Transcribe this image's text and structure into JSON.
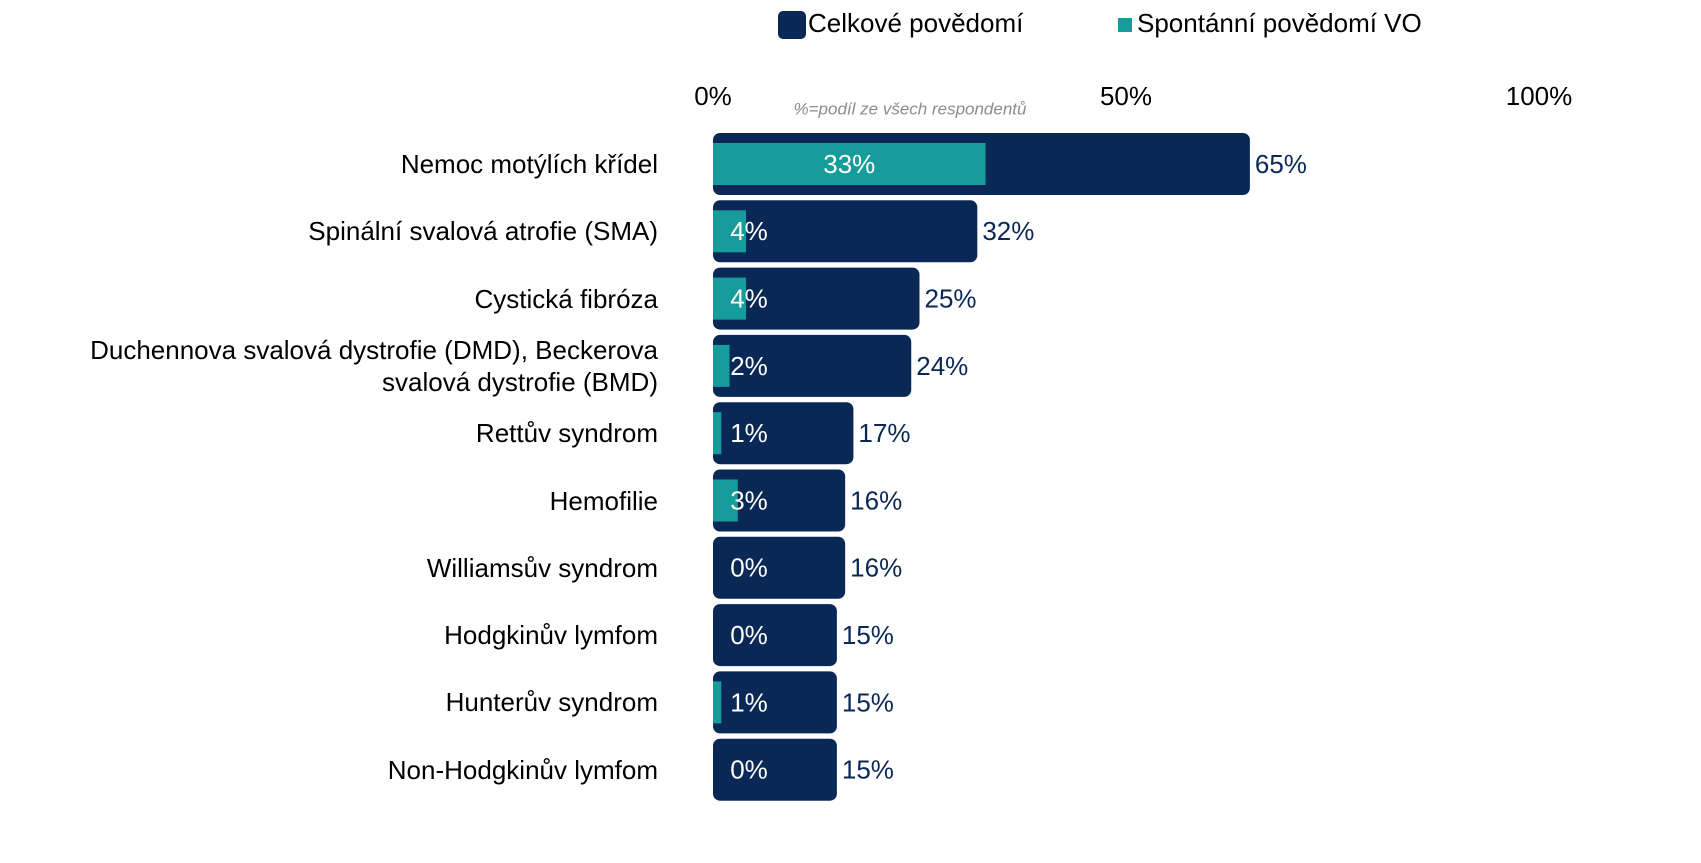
{
  "chart_data": {
    "type": "bar",
    "orientation": "horizontal",
    "overlap": true,
    "note": "%=podíl ze všech respondentů",
    "categories": [
      "Nemoc motýlích křídel",
      "Spinální svalová atrofie (SMA)",
      "Cystická fibróza",
      "Duchennova svalová dystrofie (DMD), Beckerova svalová dystrofie (BMD)",
      "Rettův syndrom",
      "Hemofilie",
      "Williamsův syndrom",
      "Hodgkinův lymfom",
      "Hunterův syndrom",
      "Non-Hodgkinův lymfom"
    ],
    "series": [
      {
        "name": "Celkové povědomí",
        "color": "#0a2856",
        "values": [
          65,
          32,
          25,
          24,
          17,
          16,
          16,
          15,
          15,
          15
        ],
        "value_labels": [
          "65%",
          "32%",
          "25%",
          "24%",
          "17%",
          "16%",
          "16%",
          "15%",
          "15%",
          "15%"
        ]
      },
      {
        "name": "Spontánní povědomí VO",
        "color": "#169c9a",
        "values": [
          33,
          4,
          4,
          2,
          1,
          3,
          0,
          0,
          1,
          0
        ],
        "value_labels": [
          "33%",
          "4%",
          "4%",
          "2%",
          "1%",
          "3%",
          "0%",
          "0%",
          "1%",
          "0%"
        ]
      }
    ],
    "xlim": [
      0,
      100
    ],
    "xticks": [
      {
        "value": 0,
        "label": "0%"
      },
      {
        "value": 50,
        "label": "50%"
      },
      {
        "value": 100,
        "label": "100%"
      }
    ],
    "grid": false,
    "legend": "top"
  }
}
